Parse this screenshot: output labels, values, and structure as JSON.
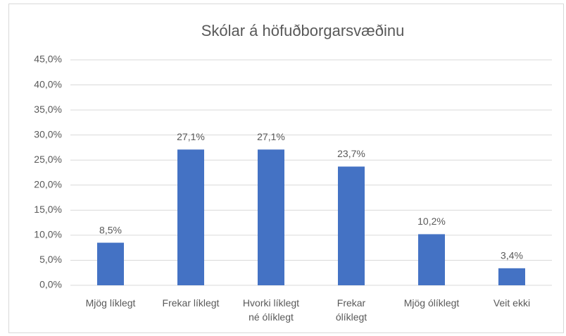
{
  "chart_data": {
    "type": "bar",
    "title": "Skólar á höfuðborgarsvæðinu",
    "categories": [
      "Mjög líklegt",
      "Frekar líklegt",
      "Hvorki líklegt\nné ólíklegt",
      "Frekar\nólíklegt",
      "Mjög ólíklegt",
      "Veit ekki"
    ],
    "values": [
      8.5,
      27.1,
      27.1,
      23.7,
      10.2,
      3.4
    ],
    "value_labels": [
      "8,5%",
      "27,1%",
      "27,1%",
      "23,7%",
      "10,2%",
      "3,4%"
    ],
    "color": "#4472c4",
    "ylim": [
      0,
      45
    ],
    "yticks": [
      {
        "value": 0,
        "label": "0,0%"
      },
      {
        "value": 5,
        "label": "5,0%"
      },
      {
        "value": 10,
        "label": "10,0%"
      },
      {
        "value": 15,
        "label": "15,0%"
      },
      {
        "value": 20,
        "label": "20,0%"
      },
      {
        "value": 25,
        "label": "25,0%"
      },
      {
        "value": 30,
        "label": "30,0%"
      },
      {
        "value": 35,
        "label": "35,0%"
      },
      {
        "value": 40,
        "label": "40,0%"
      },
      {
        "value": 45,
        "label": "45,0%"
      }
    ],
    "grid": true
  }
}
